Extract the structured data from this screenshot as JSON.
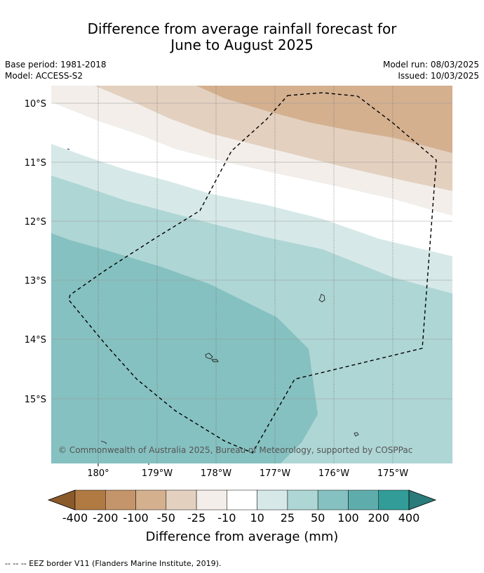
{
  "title": {
    "line1": "Difference from average rainfall forecast for",
    "line2": "June to August 2025"
  },
  "meta": {
    "base_period": "Base period: 1981-2018",
    "model": "Model: ACCESS-S2",
    "model_run": "Model run: 08/03/2025",
    "issued": "Issued: 10/03/2025"
  },
  "map": {
    "lat_labels": [
      "10°S",
      "11°S",
      "12°S",
      "13°S",
      "14°S",
      "15°S"
    ],
    "lon_labels": [
      "180°",
      "179°W",
      "178°W",
      "177°W",
      "176°W",
      "175°W"
    ],
    "copyright": "© Commonwealth of Australia 2025, Bureau of Meteorology, supported by COSPPac"
  },
  "legend": {
    "ticks": [
      "-400",
      "-200",
      "-100",
      "-50",
      "-25",
      "-10",
      "10",
      "25",
      "50",
      "100",
      "200",
      "400"
    ],
    "colors": [
      "#8a5a2b",
      "#b07a42",
      "#c4956a",
      "#d4b08f",
      "#e4d0bf",
      "#f3eee9",
      "#ffffff",
      "#d6e9e8",
      "#aed6d5",
      "#85c1c0",
      "#5eadac",
      "#319c98",
      "#2a7b79"
    ],
    "label": "Difference from average (mm)"
  },
  "footer": "--  --  -- EEZ border V11 (Flanders Marine Institute, 2019)."
}
